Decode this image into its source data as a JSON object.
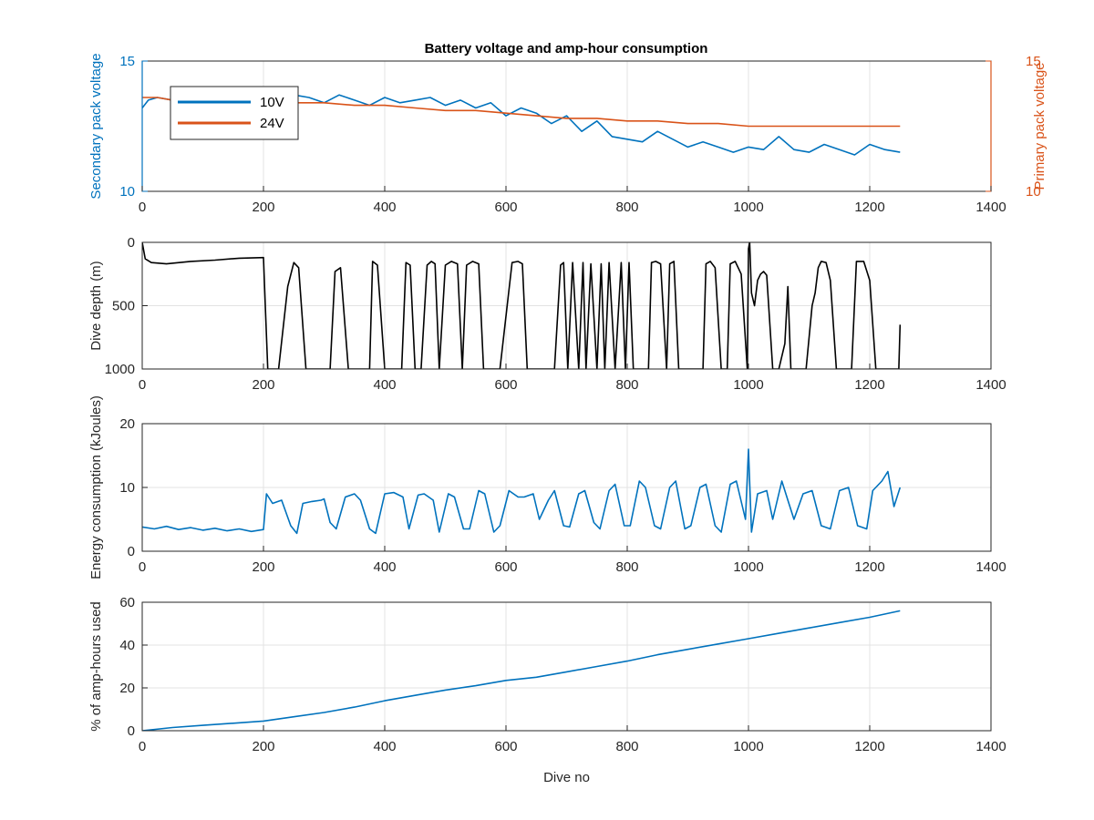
{
  "figure": {
    "title": "Battery voltage and amp-hour consumption"
  },
  "chart_data": [
    {
      "type": "line",
      "title": "Battery voltage and amp-hour consumption",
      "xlabel": "",
      "ylabel": "Secondary pack voltage",
      "ylabel_right": "Primary pack voltage",
      "xlim": [
        0,
        1400
      ],
      "ylim": [
        10,
        15
      ],
      "ylim_right": [
        10,
        15
      ],
      "xticks": [
        0,
        200,
        400,
        600,
        800,
        1000,
        1200,
        1400
      ],
      "yticks": [
        10,
        15
      ],
      "yticks_right": [
        10,
        15
      ],
      "grid": true,
      "legend": {
        "position": "top-left",
        "entries": [
          "10V",
          "24V"
        ]
      },
      "colors": {
        "10V": "#0072BD",
        "24V": "#D95319",
        "axis_left": "#0072BD",
        "axis_right": "#D95319"
      },
      "series": [
        {
          "name": "10V",
          "axis": "left",
          "x": [
            0,
            10,
            25,
            50,
            75,
            100,
            125,
            150,
            175,
            200,
            225,
            250,
            275,
            300,
            325,
            350,
            375,
            400,
            425,
            450,
            475,
            500,
            525,
            550,
            575,
            600,
            625,
            650,
            675,
            700,
            725,
            750,
            775,
            800,
            825,
            850,
            875,
            900,
            925,
            950,
            975,
            1000,
            1025,
            1050,
            1075,
            1100,
            1125,
            1150,
            1175,
            1200,
            1225,
            1250
          ],
          "y": [
            13.2,
            13.5,
            13.6,
            13.5,
            13.7,
            13.4,
            13.5,
            13.6,
            13.8,
            13.8,
            13.9,
            13.7,
            13.6,
            13.4,
            13.7,
            13.5,
            13.3,
            13.6,
            13.4,
            13.5,
            13.6,
            13.3,
            13.5,
            13.2,
            13.4,
            12.9,
            13.2,
            13.0,
            12.6,
            12.9,
            12.3,
            12.7,
            12.1,
            12.0,
            11.9,
            12.3,
            12.0,
            11.7,
            11.9,
            11.7,
            11.5,
            11.7,
            11.6,
            12.1,
            11.6,
            11.5,
            11.8,
            11.6,
            11.4,
            11.8,
            11.6,
            11.5
          ]
        },
        {
          "name": "24V",
          "axis": "right",
          "x": [
            0,
            25,
            50,
            100,
            150,
            200,
            250,
            300,
            350,
            400,
            450,
            500,
            550,
            600,
            650,
            700,
            750,
            800,
            850,
            900,
            950,
            1000,
            1050,
            1100,
            1150,
            1200,
            1250
          ],
          "y": [
            13.6,
            13.6,
            13.5,
            13.5,
            13.4,
            13.4,
            13.4,
            13.4,
            13.3,
            13.3,
            13.2,
            13.1,
            13.1,
            13.0,
            12.9,
            12.8,
            12.8,
            12.7,
            12.7,
            12.6,
            12.6,
            12.5,
            12.5,
            12.5,
            12.5,
            12.5,
            12.5
          ]
        }
      ]
    },
    {
      "type": "line",
      "title": "",
      "xlabel": "",
      "ylabel": "Dive depth (m)",
      "xlim": [
        0,
        1400
      ],
      "ylim": [
        1000,
        0
      ],
      "y_reversed": true,
      "xticks": [
        0,
        200,
        400,
        600,
        800,
        1000,
        1200,
        1400
      ],
      "yticks": [
        0,
        500,
        1000
      ],
      "grid": true,
      "colors": {
        "line": "#000000"
      },
      "series": [
        {
          "x": [
            0,
            5,
            15,
            40,
            80,
            120,
            160,
            200,
            203,
            207,
            212,
            225,
            240,
            250,
            258,
            270,
            290,
            310,
            318,
            327,
            340,
            360,
            375,
            380,
            388,
            400,
            420,
            428,
            435,
            442,
            450,
            460,
            470,
            477,
            483,
            490,
            500,
            510,
            520,
            528,
            535,
            545,
            555,
            563,
            570,
            590,
            610,
            620,
            627,
            635,
            650,
            680,
            690,
            695,
            702,
            710,
            720,
            727,
            732,
            740,
            750,
            757,
            763,
            770,
            780,
            790,
            797,
            803,
            810,
            825,
            835,
            840,
            847,
            855,
            865,
            870,
            877,
            885,
            895,
            915,
            925,
            930,
            937,
            945,
            955,
            965,
            970,
            978,
            988,
            998,
            1000,
            1002,
            1005,
            1010,
            1015,
            1020,
            1025,
            1030,
            1040,
            1050,
            1060,
            1065,
            1070,
            1080,
            1095,
            1105,
            1110,
            1115,
            1120,
            1128,
            1135,
            1145,
            1160,
            1170,
            1178,
            1190,
            1200,
            1210,
            1220,
            1240,
            1248,
            1250
          ],
          "y": [
            0,
            130,
            160,
            170,
            150,
            140,
            125,
            120,
            500,
            1000,
            1000,
            1000,
            350,
            160,
            200,
            1000,
            1000,
            1000,
            230,
            200,
            1000,
            1000,
            1000,
            150,
            180,
            1000,
            1000,
            1000,
            160,
            180,
            1000,
            1000,
            180,
            150,
            170,
            1000,
            180,
            150,
            170,
            1000,
            180,
            150,
            170,
            1000,
            1000,
            1000,
            160,
            150,
            170,
            1000,
            1000,
            1000,
            180,
            160,
            1000,
            160,
            1000,
            160,
            1000,
            170,
            1000,
            170,
            1000,
            160,
            1000,
            160,
            1000,
            160,
            1000,
            1000,
            1000,
            160,
            150,
            170,
            1000,
            170,
            150,
            1000,
            1000,
            1000,
            1000,
            170,
            150,
            200,
            1000,
            1000,
            170,
            150,
            250,
            1000,
            50,
            0,
            400,
            500,
            300,
            250,
            230,
            260,
            1000,
            1000,
            800,
            350,
            1000,
            1000,
            1000,
            500,
            400,
            200,
            150,
            160,
            300,
            1000,
            1000,
            1000,
            150,
            150,
            300,
            1000,
            1000,
            1000,
            1000,
            650
          ]
        }
      ]
    },
    {
      "type": "line",
      "title": "",
      "xlabel": "",
      "ylabel": "Energy consumption (kJoules)",
      "xlim": [
        0,
        1400
      ],
      "ylim": [
        0,
        20
      ],
      "xticks": [
        0,
        200,
        400,
        600,
        800,
        1000,
        1200,
        1400
      ],
      "yticks": [
        0,
        10,
        20
      ],
      "grid": true,
      "colors": {
        "line": "#0072BD"
      },
      "series": [
        {
          "x": [
            0,
            20,
            40,
            60,
            80,
            100,
            120,
            140,
            160,
            180,
            200,
            205,
            215,
            230,
            245,
            255,
            265,
            280,
            295,
            300,
            310,
            320,
            335,
            350,
            360,
            375,
            385,
            400,
            415,
            430,
            440,
            455,
            465,
            480,
            490,
            505,
            515,
            530,
            540,
            555,
            565,
            580,
            590,
            605,
            620,
            630,
            645,
            655,
            670,
            680,
            695,
            705,
            720,
            730,
            745,
            755,
            770,
            780,
            795,
            805,
            820,
            830,
            845,
            855,
            870,
            880,
            895,
            905,
            920,
            930,
            945,
            955,
            970,
            980,
            995,
            1000,
            1005,
            1015,
            1030,
            1040,
            1055,
            1065,
            1075,
            1090,
            1105,
            1120,
            1135,
            1150,
            1165,
            1180,
            1195,
            1205,
            1220,
            1230,
            1240,
            1250
          ],
          "y": [
            3.8,
            3.5,
            3.9,
            3.4,
            3.7,
            3.3,
            3.6,
            3.2,
            3.5,
            3.1,
            3.4,
            9.0,
            7.5,
            8.0,
            4.0,
            2.8,
            7.5,
            7.8,
            8.0,
            8.2,
            4.5,
            3.5,
            8.5,
            9.0,
            8.0,
            3.5,
            2.8,
            9.0,
            9.2,
            8.5,
            3.5,
            8.8,
            9.0,
            8.0,
            3.0,
            9.0,
            8.5,
            3.5,
            3.5,
            9.5,
            9.0,
            3.0,
            4.0,
            9.5,
            8.5,
            8.5,
            9.0,
            5.0,
            8.0,
            9.5,
            4.0,
            3.8,
            9.0,
            9.5,
            4.5,
            3.5,
            9.5,
            10.5,
            4.0,
            4.0,
            11.0,
            10.0,
            4.0,
            3.5,
            10.0,
            11.0,
            3.5,
            4.0,
            10.0,
            10.5,
            4.0,
            3.0,
            10.5,
            11.0,
            5.0,
            16.0,
            3.0,
            9.0,
            9.5,
            5.0,
            11.0,
            8.0,
            5.0,
            9.0,
            9.5,
            4.0,
            3.5,
            9.5,
            10.0,
            4.0,
            3.5,
            9.5,
            11.0,
            12.5,
            7.0,
            10.0
          ]
        }
      ]
    },
    {
      "type": "line",
      "title": "",
      "xlabel": "Dive no",
      "ylabel": "% of amp-hours used",
      "xlim": [
        0,
        1400
      ],
      "ylim": [
        0,
        60
      ],
      "xticks": [
        0,
        200,
        400,
        600,
        800,
        1000,
        1200,
        1400
      ],
      "yticks": [
        0,
        20,
        40,
        60
      ],
      "grid": true,
      "colors": {
        "line": "#0072BD"
      },
      "series": [
        {
          "x": [
            0,
            50,
            100,
            150,
            200,
            250,
            300,
            350,
            400,
            450,
            500,
            550,
            600,
            650,
            700,
            750,
            800,
            850,
            900,
            950,
            1000,
            1050,
            1100,
            1150,
            1200,
            1250
          ],
          "y": [
            0,
            1.5,
            2.5,
            3.5,
            4.5,
            6.5,
            8.5,
            11.0,
            14.0,
            16.5,
            19.0,
            21.0,
            23.5,
            25.0,
            27.5,
            30.0,
            32.5,
            35.5,
            38.0,
            40.5,
            43.0,
            45.5,
            48.0,
            50.5,
            53.0,
            56.0
          ]
        }
      ]
    }
  ]
}
